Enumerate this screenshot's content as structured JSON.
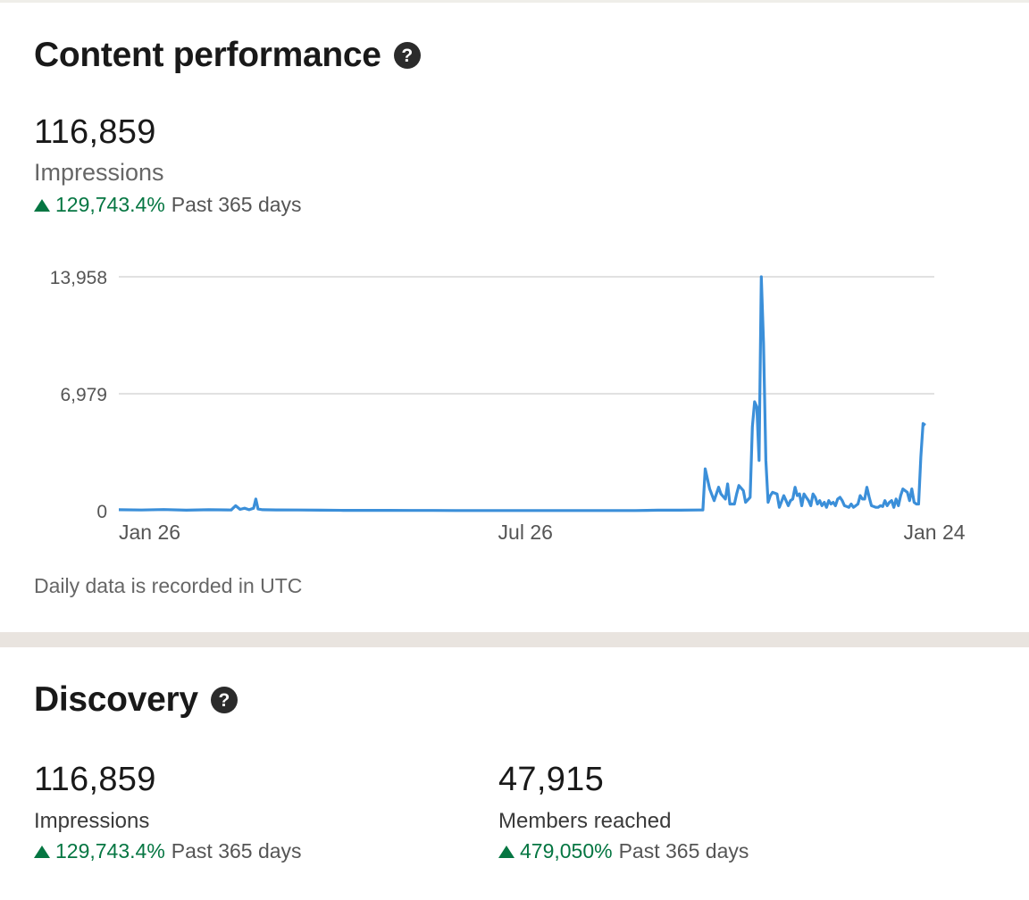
{
  "content_performance": {
    "title": "Content performance",
    "help_icon": "?",
    "impressions_value": "116,859",
    "impressions_label": "Impressions",
    "trend_pct": "129,743.4%",
    "trend_period": "Past 365 days",
    "footnote": "Daily data is recorded in UTC"
  },
  "discovery": {
    "title": "Discovery",
    "help_icon": "?",
    "impressions": {
      "value": "116,859",
      "label": "Impressions",
      "trend_pct": "129,743.4%",
      "trend_period": "Past 365 days"
    },
    "members": {
      "value": "47,915",
      "label": "Members reached",
      "trend_pct": "479,050%",
      "trend_period": "Past 365 days"
    }
  },
  "colors": {
    "line": "#3b8fd9",
    "positive": "#057642",
    "grid": "#cfcfcf"
  },
  "chart_data": {
    "type": "line",
    "ylim": [
      0,
      13958
    ],
    "y_ticks": [
      "0",
      "6,979",
      "13,958"
    ],
    "y_tick_values": [
      0,
      6979,
      13958
    ],
    "x_tick_labels": [
      "Jan 26",
      "Jul 26",
      "Jan 24"
    ],
    "x_tick_days": [
      0,
      181,
      363
    ],
    "grid": true,
    "series": [
      {
        "values": [
          [
            0,
            60
          ],
          [
            10,
            40
          ],
          [
            20,
            70
          ],
          [
            30,
            30
          ],
          [
            40,
            60
          ],
          [
            50,
            40
          ],
          [
            52,
            300
          ],
          [
            54,
            80
          ],
          [
            56,
            150
          ],
          [
            58,
            60
          ],
          [
            60,
            150
          ],
          [
            61,
            700
          ],
          [
            62,
            100
          ],
          [
            64,
            60
          ],
          [
            70,
            50
          ],
          [
            80,
            40
          ],
          [
            90,
            30
          ],
          [
            100,
            20
          ],
          [
            110,
            20
          ],
          [
            120,
            20
          ],
          [
            130,
            15
          ],
          [
            140,
            15
          ],
          [
            150,
            10
          ],
          [
            160,
            10
          ],
          [
            170,
            10
          ],
          [
            180,
            10
          ],
          [
            190,
            10
          ],
          [
            200,
            10
          ],
          [
            210,
            10
          ],
          [
            220,
            10
          ],
          [
            225,
            10
          ],
          [
            230,
            10
          ],
          [
            235,
            20
          ],
          [
            240,
            30
          ],
          [
            250,
            30
          ],
          [
            258,
            40
          ],
          [
            260,
            50
          ],
          [
            261,
            2500
          ],
          [
            263,
            1300
          ],
          [
            265,
            600
          ],
          [
            267,
            1400
          ],
          [
            268,
            1000
          ],
          [
            270,
            700
          ],
          [
            271,
            1600
          ],
          [
            272,
            400
          ],
          [
            274,
            400
          ],
          [
            275,
            1000
          ],
          [
            276,
            1500
          ],
          [
            278,
            1200
          ],
          [
            279,
            500
          ],
          [
            281,
            800
          ],
          [
            282,
            5000
          ],
          [
            283,
            6500
          ],
          [
            284,
            6200
          ],
          [
            285,
            3000
          ],
          [
            286,
            13958
          ],
          [
            287,
            10000
          ],
          [
            288,
            3000
          ],
          [
            289,
            500
          ],
          [
            290,
            900
          ],
          [
            291,
            1100
          ],
          [
            293,
            1000
          ],
          [
            294,
            200
          ],
          [
            296,
            900
          ],
          [
            297,
            600
          ],
          [
            298,
            300
          ],
          [
            299,
            600
          ],
          [
            300,
            700
          ],
          [
            301,
            1400
          ],
          [
            302,
            900
          ],
          [
            303,
            1000
          ],
          [
            304,
            300
          ],
          [
            305,
            1000
          ],
          [
            306,
            800
          ],
          [
            307,
            600
          ],
          [
            308,
            300
          ],
          [
            309,
            1000
          ],
          [
            310,
            800
          ],
          [
            311,
            400
          ],
          [
            312,
            600
          ],
          [
            313,
            300
          ],
          [
            314,
            500
          ],
          [
            315,
            200
          ],
          [
            316,
            600
          ],
          [
            317,
            400
          ],
          [
            318,
            500
          ],
          [
            319,
            300
          ],
          [
            320,
            700
          ],
          [
            321,
            800
          ],
          [
            322,
            600
          ],
          [
            323,
            300
          ],
          [
            324,
            250
          ],
          [
            325,
            200
          ],
          [
            326,
            400
          ],
          [
            327,
            200
          ],
          [
            328,
            300
          ],
          [
            329,
            400
          ],
          [
            330,
            900
          ],
          [
            331,
            700
          ],
          [
            332,
            700
          ],
          [
            333,
            1400
          ],
          [
            334,
            800
          ],
          [
            335,
            300
          ],
          [
            336,
            250
          ],
          [
            337,
            200
          ],
          [
            338,
            200
          ],
          [
            339,
            300
          ],
          [
            340,
            250
          ],
          [
            341,
            600
          ],
          [
            342,
            300
          ],
          [
            343,
            500
          ],
          [
            344,
            600
          ],
          [
            345,
            200
          ],
          [
            346,
            700
          ],
          [
            347,
            300
          ],
          [
            348,
            900
          ],
          [
            349,
            1300
          ],
          [
            350,
            1200
          ],
          [
            351,
            1100
          ],
          [
            352,
            600
          ],
          [
            353,
            1300
          ],
          [
            354,
            500
          ],
          [
            355,
            400
          ],
          [
            356,
            400
          ],
          [
            357,
            3200
          ],
          [
            358,
            5200
          ],
          [
            359,
            5100
          ]
        ]
      }
    ]
  }
}
